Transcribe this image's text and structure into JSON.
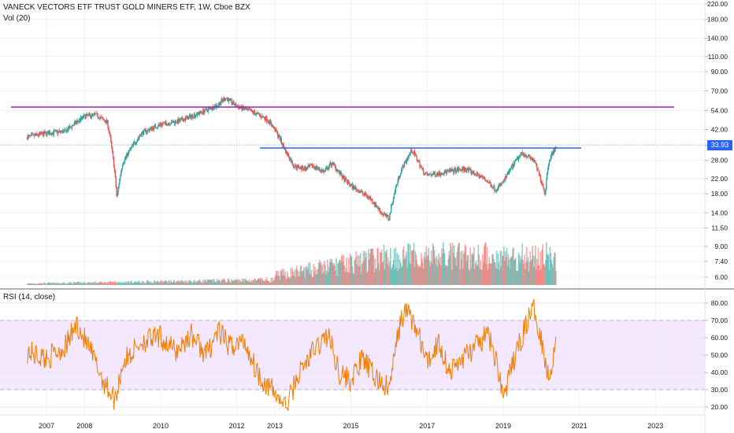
{
  "header": {
    "title": "VANECK VECTORS ETF TRUST GOLD MINERS ETF, 1W, Cboe BZX",
    "volume_label": "Vol (20)",
    "rsi_label": "RSI (14, close)"
  },
  "current_price": {
    "label": "33.93",
    "value": 33.93,
    "color": "#2962ff"
  },
  "colors": {
    "up": "#26a69a",
    "down": "#ef5350",
    "resistance_line": "#9c27b0",
    "support_line": "#2962ff",
    "rsi_line": "#f57c00",
    "rsi_band": "#f3e8fd"
  },
  "chart_data": [
    {
      "type": "candlestick",
      "title": "VANECK VECTORS ETF TRUST GOLD MINERS ETF, 1W, Cboe BZX",
      "x_ticks": [
        "2007",
        "2008",
        "2010",
        "2012",
        "2013",
        "2015",
        "2017",
        "2019",
        "2021",
        "2023"
      ],
      "y_scale": "log",
      "y_ticks": [
        "220.00",
        "180.00",
        "140.00",
        "110.00",
        "90.00",
        "70.00",
        "54.00",
        "42.00",
        "34.00",
        "28.00",
        "22.00",
        "18.00",
        "14.00",
        "11.50",
        "9.00",
        "7.40",
        "6.00"
      ],
      "series_approx": {
        "x": [
          2006.5,
          2007.0,
          2007.5,
          2008.0,
          2008.3,
          2008.6,
          2008.85,
          2009.0,
          2009.5,
          2010.0,
          2010.5,
          2011.0,
          2011.5,
          2011.7,
          2012.0,
          2012.5,
          2012.8,
          2013.0,
          2013.3,
          2013.5,
          2013.8,
          2014.0,
          2014.3,
          2014.5,
          2014.8,
          2015.0,
          2015.5,
          2015.8,
          2016.0,
          2016.3,
          2016.6,
          2016.9,
          2017.0,
          2017.5,
          2018.0,
          2018.5,
          2018.8,
          2019.0,
          2019.5,
          2019.8,
          2020.1,
          2020.2,
          2020.4
        ],
        "close": [
          38,
          40,
          41,
          50,
          51,
          46,
          17,
          27,
          40,
          45,
          47,
          52,
          58,
          64,
          57,
          52,
          48,
          42,
          31,
          26,
          25,
          26,
          24,
          27,
          22,
          20,
          17,
          14,
          13,
          24,
          32,
          24,
          23,
          24,
          25,
          22,
          19,
          21,
          31,
          28,
          18,
          28,
          33.93
        ]
      },
      "volume_series_label": "Vol (20)"
    },
    {
      "type": "line",
      "title": "RSI (14, close)",
      "y_ticks": [
        "80.00",
        "70.00",
        "60.00",
        "50.00",
        "40.00",
        "30.00",
        "20.00"
      ],
      "band": [
        30,
        70
      ],
      "series": [
        {
          "x": [
            2006.5,
            2007.0,
            2007.5,
            2007.8,
            2008.2,
            2008.5,
            2008.8,
            2009.0,
            2009.5,
            2010.0,
            2010.4,
            2010.8,
            2011.2,
            2011.5,
            2011.8,
            2012.2,
            2012.5,
            2012.7,
            2013.0,
            2013.3,
            2013.6,
            2014.0,
            2014.4,
            2014.7,
            2015.0,
            2015.3,
            2015.6,
            2016.0,
            2016.3,
            2016.5,
            2016.8,
            2017.0,
            2017.3,
            2017.6,
            2018.0,
            2018.3,
            2018.6,
            2018.9,
            2019.0,
            2019.3,
            2019.6,
            2019.8,
            2020.0,
            2020.2,
            2020.4
          ],
          "values": [
            52,
            48,
            55,
            68,
            50,
            35,
            24,
            45,
            58,
            60,
            52,
            62,
            50,
            64,
            55,
            58,
            42,
            35,
            28,
            20,
            38,
            52,
            62,
            40,
            35,
            48,
            38,
            30,
            70,
            76,
            60,
            45,
            58,
            40,
            50,
            55,
            62,
            40,
            25,
            48,
            68,
            78,
            60,
            35,
            62
          ]
        }
      ]
    }
  ]
}
